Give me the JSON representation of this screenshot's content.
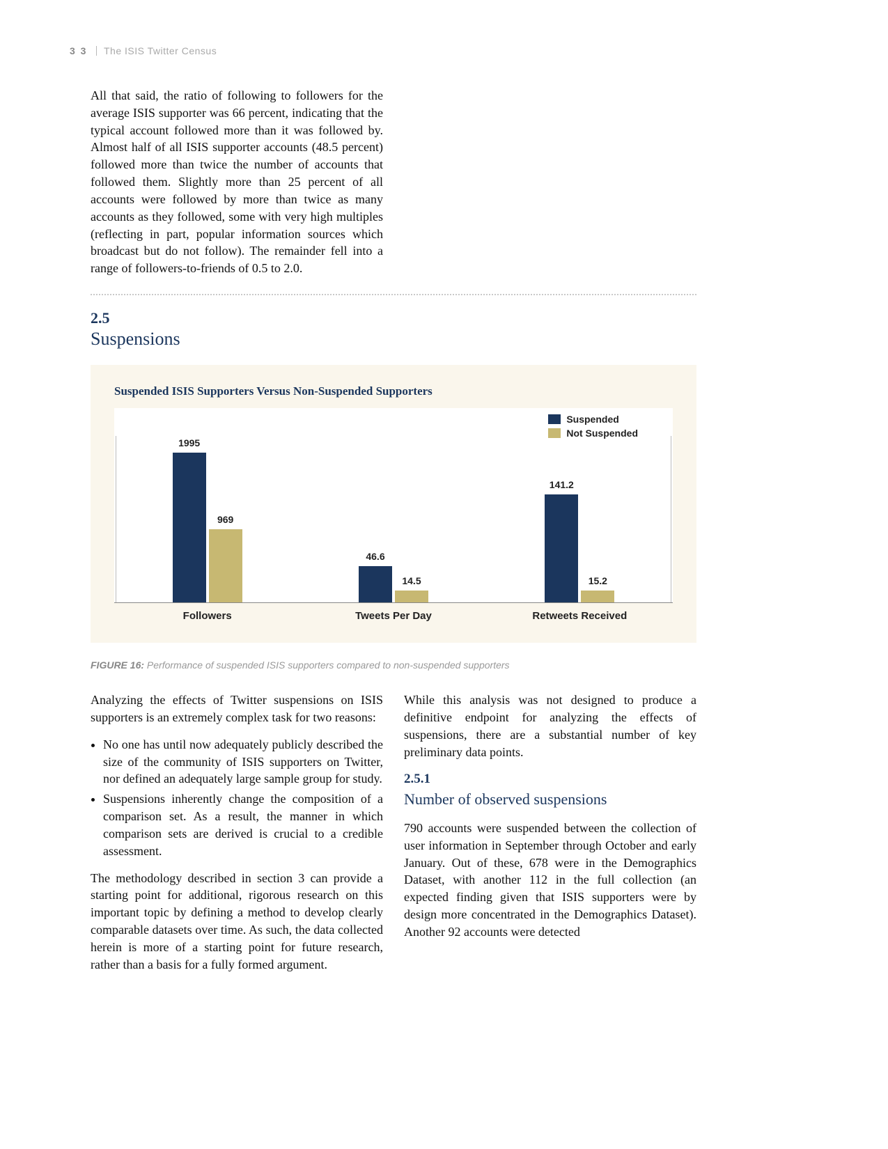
{
  "header": {
    "page_number": "3 3",
    "doc_title": "The ISIS Twitter Census"
  },
  "intro_paragraph": "All that said, the ratio of following to followers for the average ISIS supporter was 66 percent, indicating that the typical account followed more than it was followed by. Almost half of all ISIS supporter accounts (48.5 percent) followed more than twice the number of accounts that followed them. Slightly more than 25 percent of all accounts were followed by more than twice as many accounts as they followed, some with very high multiples (reflecting in part, popular information sources which broadcast but do not follow). The remainder fell into a range of followers-to-friends of 0.5 to 2.0.",
  "section": {
    "number": "2.5",
    "title": "Suspensions"
  },
  "chart": {
    "title": "Suspended ISIS Supporters Versus Non-Suspended Supporters",
    "type": "grouped-bar",
    "background_color": "#faf6ec",
    "plot_background": "#ffffff",
    "legend": [
      {
        "label": "Suspended",
        "color": "#1b365d"
      },
      {
        "label": "Not Suspended",
        "color": "#c7b872"
      }
    ],
    "groups": [
      {
        "label": "Followers",
        "bars": [
          {
            "value": 1995,
            "label": "1995",
            "color": "#1b365d",
            "height_pct": 90
          },
          {
            "value": 969,
            "label": "969",
            "color": "#c7b872",
            "height_pct": 44
          }
        ]
      },
      {
        "label": "Tweets Per Day",
        "bars": [
          {
            "value": 46.6,
            "label": "46.6",
            "color": "#1b365d",
            "height_pct": 22
          },
          {
            "value": 14.5,
            "label": "14.5",
            "color": "#c7b872",
            "height_pct": 7
          }
        ]
      },
      {
        "label": "Retweets Received",
        "bars": [
          {
            "value": 141.2,
            "label": "141.2",
            "color": "#1b365d",
            "height_pct": 65
          },
          {
            "value": 15.2,
            "label": "15.2",
            "color": "#c7b872",
            "height_pct": 7
          }
        ]
      }
    ],
    "label_fontsize": 14,
    "title_fontsize": 17,
    "axis_color": "#888888"
  },
  "figure_caption": {
    "label": "FIGURE 16:",
    "text": "Performance of suspended ISIS supporters compared to non-suspended supporters"
  },
  "body": {
    "p1": "Analyzing the effects of Twitter suspensions on ISIS supporters is an extremely complex task for two reasons:",
    "bullets": [
      "No one has until now adequately publicly described the size of the community of ISIS supporters on Twitter, nor defined an adequately large sample group for study.",
      "Suspensions inherently change the composition of a comparison set. As a result, the manner in which comparison sets are derived is crucial to a credible assessment."
    ],
    "p2": "The methodology described in section 3 can provide a starting point for additional, rigorous research on this important topic by defining a method to develop clearly comparable datasets over time. As such, the data collected herein is more of a starting point for future research, rather than a basis for a fully formed argument.",
    "p3": "While this analysis was not designed to produce a definitive endpoint for analyzing the effects of suspensions, there are a substantial number of key preliminary data points.",
    "subsection": {
      "number": "2.5.1",
      "title": "Number of observed suspensions"
    },
    "p4": "790 accounts were suspended between the collection of user information in September through October and early January. Out of these, 678 were in the Demographics Dataset, with another 112 in the full collection (an expected finding given that ISIS supporters were by design more concentrated in the Demographics Dataset). Another 92 accounts were detected"
  }
}
